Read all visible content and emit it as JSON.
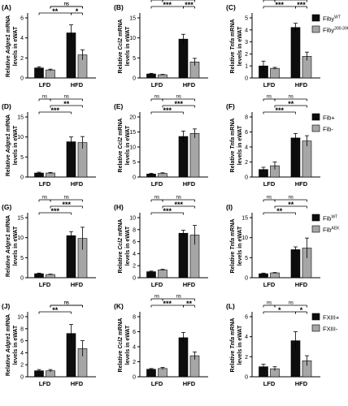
{
  "colors": {
    "bar_dark": "#0d0d0d",
    "bar_light": "#a6a6a6",
    "axis": "#000000"
  },
  "legends": [
    {
      "row": 0,
      "dark_label": "Fiby",
      "dark_sup": "WT",
      "light_label": "Fiby",
      "light_sup": "390-396A"
    },
    {
      "row": 1,
      "dark_label": "Fib+",
      "dark_sup": "",
      "light_label": "Fib-",
      "light_sup": ""
    },
    {
      "row": 2,
      "dark_label": "Fib",
      "dark_sup": "WT",
      "light_label": "Fib",
      "light_sup": "AEK"
    },
    {
      "row": 3,
      "dark_label": "FXIII+",
      "dark_sup": "",
      "light_label": "FXIII-",
      "light_sup": ""
    }
  ],
  "chart_data": [
    {
      "panel": "(A)",
      "type": "bar",
      "ylabel_prefix": "Relative ",
      "ylabel_gene": "Adgre1",
      "ylabel_suffix": " mRNA",
      "ylabel_line2": "levels in eWAT",
      "ylim": [
        0,
        6
      ],
      "yticks": [
        "0",
        "2",
        "4",
        "6"
      ],
      "categories": [
        "LFD",
        "HFD"
      ],
      "series": [
        {
          "values": [
            1.0,
            4.5
          ],
          "errors": [
            0.12,
            0.8
          ]
        },
        {
          "values": [
            0.8,
            2.3
          ],
          "errors": [
            0.08,
            0.5
          ]
        }
      ],
      "sig": [
        {
          "text": "ns",
          "level": 1,
          "from": [
            0,
            1
          ],
          "to": [
            1,
            1
          ]
        },
        {
          "text": "ns",
          "level": 1,
          "from": [
            0,
            1
          ],
          "to": [
            1,
            1
          ]
        },
        {
          "text": "**",
          "level": 0,
          "from": [
            0,
            0
          ],
          "to": [
            1,
            0
          ]
        },
        {
          "text": "*",
          "level": 0,
          "from": [
            1,
            0
          ],
          "to": [
            1,
            1
          ]
        }
      ]
    },
    {
      "panel": "(B)",
      "type": "bar",
      "ylabel_prefix": "Relative ",
      "ylabel_gene": "Ccl2",
      "ylabel_suffix": " mRNA",
      "ylabel_line2": "levels in eWAT",
      "ylim": [
        0,
        15
      ],
      "yticks": [
        "0",
        "5",
        "10",
        "15"
      ],
      "categories": [
        "LFD",
        "HFD"
      ],
      "series": [
        {
          "values": [
            1.0,
            9.7
          ],
          "errors": [
            0.15,
            1.2
          ]
        },
        {
          "values": [
            0.8,
            4.0
          ],
          "errors": [
            0.1,
            0.9
          ]
        }
      ],
      "sig": [
        {
          "text": "ns",
          "level": 2,
          "from": [
            0,
            0
          ],
          "to": [
            0,
            1
          ]
        },
        {
          "text": "ns",
          "level": 2,
          "from": [
            0,
            1
          ],
          "to": [
            1,
            1
          ]
        },
        {
          "text": "***",
          "level": 1,
          "from": [
            0,
            0
          ],
          "to": [
            1,
            0
          ]
        },
        {
          "text": "***",
          "level": 1,
          "from": [
            1,
            0
          ],
          "to": [
            1,
            1
          ]
        }
      ]
    },
    {
      "panel": "(C)",
      "type": "bar",
      "ylabel_prefix": "Relative ",
      "ylabel_gene": "Tnfa",
      "ylabel_suffix": " mRNA",
      "ylabel_line2": "levels in eWAT",
      "ylim": [
        0,
        5
      ],
      "yticks": [
        "0",
        "1",
        "2",
        "3",
        "4",
        "5"
      ],
      "categories": [
        "LFD",
        "HFD"
      ],
      "series": [
        {
          "values": [
            1.0,
            4.2
          ],
          "errors": [
            0.4,
            0.35
          ]
        },
        {
          "values": [
            0.8,
            1.8
          ],
          "errors": [
            0.08,
            0.35
          ]
        }
      ],
      "sig": [
        {
          "text": "ns",
          "level": 2,
          "from": [
            0,
            0
          ],
          "to": [
            0,
            1
          ]
        },
        {
          "text": "ns",
          "level": 2,
          "from": [
            0,
            1
          ],
          "to": [
            1,
            1
          ]
        },
        {
          "text": "***",
          "level": 1,
          "from": [
            0,
            0
          ],
          "to": [
            1,
            0
          ]
        },
        {
          "text": "***",
          "level": 1,
          "from": [
            1,
            0
          ],
          "to": [
            1,
            1
          ]
        }
      ]
    },
    {
      "panel": "(D)",
      "type": "bar",
      "ylabel_prefix": "Relative ",
      "ylabel_gene": "Adgre1",
      "ylabel_suffix": " mRNA",
      "ylabel_line2": "levels in eWAT",
      "ylim": [
        0,
        15
      ],
      "yticks": [
        "0",
        "5",
        "10",
        "15"
      ],
      "categories": [
        "LFD",
        "HFD"
      ],
      "series": [
        {
          "values": [
            1.0,
            8.8
          ],
          "errors": [
            0.2,
            1.2
          ]
        },
        {
          "values": [
            1.0,
            8.6
          ],
          "errors": [
            0.15,
            1.5
          ]
        }
      ],
      "sig": [
        {
          "text": "ns",
          "level": 2,
          "from": [
            0,
            0
          ],
          "to": [
            0,
            1
          ]
        },
        {
          "text": "ns",
          "level": 2,
          "from": [
            0,
            1
          ],
          "to": [
            1,
            1
          ]
        },
        {
          "text": "**",
          "level": 1,
          "from": [
            0,
            1
          ],
          "to": [
            1,
            1
          ]
        },
        {
          "text": "***",
          "level": 0,
          "from": [
            0,
            0
          ],
          "to": [
            1,
            0
          ]
        }
      ]
    },
    {
      "panel": "(E)",
      "type": "bar",
      "ylabel_prefix": "Relative ",
      "ylabel_gene": "Ccl2",
      "ylabel_suffix": " mRNA",
      "ylabel_line2": "levels in eWAT",
      "ylim": [
        0,
        20
      ],
      "yticks": [
        "0",
        "5",
        "10",
        "15",
        "20"
      ],
      "categories": [
        "LFD",
        "HFD"
      ],
      "series": [
        {
          "values": [
            1.0,
            13.5
          ],
          "errors": [
            0.25,
            1.8
          ]
        },
        {
          "values": [
            1.2,
            14.5
          ],
          "errors": [
            0.2,
            1.5
          ]
        }
      ],
      "sig": [
        {
          "text": "ns",
          "level": 2,
          "from": [
            0,
            0
          ],
          "to": [
            0,
            1
          ]
        },
        {
          "text": "ns",
          "level": 2,
          "from": [
            0,
            1
          ],
          "to": [
            1,
            1
          ]
        },
        {
          "text": "***",
          "level": 1,
          "from": [
            0,
            1
          ],
          "to": [
            1,
            1
          ]
        },
        {
          "text": "***",
          "level": 0,
          "from": [
            0,
            0
          ],
          "to": [
            1,
            0
          ]
        }
      ]
    },
    {
      "panel": "(F)",
      "type": "bar",
      "ylabel_prefix": "Relative ",
      "ylabel_gene": "Tnfa",
      "ylabel_suffix": " mRNA",
      "ylabel_line2": "levels in eWAT",
      "ylim": [
        0,
        8
      ],
      "yticks": [
        "0",
        "2",
        "4",
        "6",
        "8"
      ],
      "categories": [
        "LFD",
        "HFD"
      ],
      "series": [
        {
          "values": [
            1.0,
            5.2
          ],
          "errors": [
            0.3,
            0.6
          ]
        },
        {
          "values": [
            1.5,
            4.8
          ],
          "errors": [
            0.5,
            0.7
          ]
        }
      ],
      "sig": [
        {
          "text": "ns",
          "level": 2,
          "from": [
            0,
            0
          ],
          "to": [
            0,
            1
          ]
        },
        {
          "text": "ns",
          "level": 2,
          "from": [
            0,
            1
          ],
          "to": [
            1,
            1
          ]
        },
        {
          "text": "**",
          "level": 1,
          "from": [
            0,
            1
          ],
          "to": [
            1,
            1
          ]
        },
        {
          "text": "***",
          "level": 0,
          "from": [
            0,
            0
          ],
          "to": [
            1,
            0
          ]
        }
      ]
    },
    {
      "panel": "(G)",
      "type": "bar",
      "ylabel_prefix": "Relative ",
      "ylabel_gene": "Adgre1",
      "ylabel_suffix": " mRNA",
      "ylabel_line2": "levels in eWAT",
      "ylim": [
        0,
        15
      ],
      "yticks": [
        "0",
        "5",
        "10",
        "15"
      ],
      "categories": [
        "LFD",
        "HFD"
      ],
      "series": [
        {
          "values": [
            1.0,
            10.5
          ],
          "errors": [
            0.15,
            1.0
          ]
        },
        {
          "values": [
            0.8,
            9.8
          ],
          "errors": [
            0.1,
            2.8
          ]
        }
      ],
      "sig": [
        {
          "text": "ns",
          "level": 2,
          "from": [
            0,
            0
          ],
          "to": [
            0,
            1
          ]
        },
        {
          "text": "ns",
          "level": 2,
          "from": [
            0,
            1
          ],
          "to": [
            1,
            1
          ]
        },
        {
          "text": "***",
          "level": 1,
          "from": [
            0,
            1
          ],
          "to": [
            1,
            1
          ]
        },
        {
          "text": "***",
          "level": 0,
          "from": [
            0,
            0
          ],
          "to": [
            1,
            0
          ]
        }
      ]
    },
    {
      "panel": "(H)",
      "type": "bar",
      "ylabel_prefix": "Relative ",
      "ylabel_gene": "Ccl2",
      "ylabel_suffix": " mRNA",
      "ylabel_line2": "levels in eWAT",
      "ylim": [
        0,
        10
      ],
      "yticks": [
        "0",
        "2",
        "4",
        "6",
        "8",
        "10"
      ],
      "categories": [
        "LFD",
        "HFD"
      ],
      "series": [
        {
          "values": [
            1.0,
            7.4
          ],
          "errors": [
            0.1,
            0.5
          ]
        },
        {
          "values": [
            1.3,
            7.1
          ],
          "errors": [
            0.1,
            1.6
          ]
        }
      ],
      "sig": [
        {
          "text": "ns",
          "level": 2,
          "from": [
            0,
            0
          ],
          "to": [
            0,
            1
          ]
        },
        {
          "text": "ns",
          "level": 2,
          "from": [
            0,
            1
          ],
          "to": [
            1,
            1
          ]
        },
        {
          "text": "***",
          "level": 1,
          "from": [
            0,
            1
          ],
          "to": [
            1,
            1
          ]
        },
        {
          "text": "***",
          "level": 0,
          "from": [
            0,
            0
          ],
          "to": [
            1,
            0
          ]
        }
      ]
    },
    {
      "panel": "(I)",
      "type": "bar",
      "ylabel_prefix": "Relative ",
      "ylabel_gene": "Tnfa",
      "ylabel_suffix": " mRNA",
      "ylabel_line2": "levels in eWAT",
      "ylim": [
        0,
        15
      ],
      "yticks": [
        "0",
        "5",
        "10",
        "15"
      ],
      "categories": [
        "LFD",
        "HFD"
      ],
      "series": [
        {
          "values": [
            1.0,
            7.0
          ],
          "errors": [
            0.15,
            0.7
          ]
        },
        {
          "values": [
            1.2,
            7.4
          ],
          "errors": [
            0.1,
            2.5
          ]
        }
      ],
      "sig": [
        {
          "text": "ns",
          "level": 2,
          "from": [
            0,
            0
          ],
          "to": [
            0,
            1
          ]
        },
        {
          "text": "ns",
          "level": 2,
          "from": [
            0,
            1
          ],
          "to": [
            1,
            1
          ]
        },
        {
          "text": "**",
          "level": 1,
          "from": [
            0,
            1
          ],
          "to": [
            1,
            1
          ]
        },
        {
          "text": "**",
          "level": 0,
          "from": [
            0,
            0
          ],
          "to": [
            1,
            0
          ]
        }
      ]
    },
    {
      "panel": "(J)",
      "type": "bar",
      "ylabel_prefix": "Relative ",
      "ylabel_gene": "Adgre1",
      "ylabel_suffix": " mRNA",
      "ylabel_line2": "levels in eWAT",
      "ylim": [
        0,
        10
      ],
      "yticks": [
        "0",
        "2",
        "4",
        "6",
        "8",
        "10"
      ],
      "categories": [
        "LFD",
        "HFD"
      ],
      "series": [
        {
          "values": [
            1.0,
            7.2
          ],
          "errors": [
            0.2,
            1.5
          ]
        },
        {
          "values": [
            1.0,
            4.7
          ],
          "errors": [
            0.2,
            1.3
          ]
        }
      ],
      "sig": [
        {
          "text": "ns",
          "level": 1,
          "from": [
            0,
            1
          ],
          "to": [
            1,
            1
          ]
        },
        {
          "text": "ns",
          "level": 1,
          "from": [
            0,
            1
          ],
          "to": [
            1,
            1
          ]
        },
        {
          "text": "**",
          "level": 0,
          "from": [
            0,
            0
          ],
          "to": [
            1,
            0
          ]
        }
      ]
    },
    {
      "panel": "(K)",
      "type": "bar",
      "ylabel_prefix": "Relative ",
      "ylabel_gene": "Ccl2",
      "ylabel_suffix": " mRNA",
      "ylabel_line2": "levels in eWAT",
      "ylim": [
        0,
        8
      ],
      "yticks": [
        "0",
        "2",
        "4",
        "6",
        "8"
      ],
      "categories": [
        "LFD",
        "HFD"
      ],
      "series": [
        {
          "values": [
            1.0,
            5.2
          ],
          "errors": [
            0.1,
            0.7
          ]
        },
        {
          "values": [
            1.1,
            2.8
          ],
          "errors": [
            0.15,
            0.5
          ]
        }
      ],
      "sig": [
        {
          "text": "ns",
          "level": 2,
          "from": [
            0,
            0
          ],
          "to": [
            0,
            1
          ]
        },
        {
          "text": "ns",
          "level": 2,
          "from": [
            0,
            1
          ],
          "to": [
            1,
            1
          ]
        },
        {
          "text": "***",
          "level": 1,
          "from": [
            0,
            0
          ],
          "to": [
            1,
            0
          ]
        },
        {
          "text": "**",
          "level": 1,
          "from": [
            1,
            0
          ],
          "to": [
            1,
            1
          ]
        }
      ]
    },
    {
      "panel": "(L)",
      "type": "bar",
      "ylabel_prefix": "Relative ",
      "ylabel_gene": "Tnfa",
      "ylabel_suffix": " mRNA",
      "ylabel_line2": "levels in eWAT",
      "ylim": [
        0,
        6
      ],
      "yticks": [
        "0",
        "2",
        "4",
        "6"
      ],
      "categories": [
        "LFD",
        "HFD"
      ],
      "series": [
        {
          "values": [
            1.0,
            3.6
          ],
          "errors": [
            0.25,
            0.9
          ]
        },
        {
          "values": [
            0.8,
            1.6
          ],
          "errors": [
            0.2,
            0.5
          ]
        }
      ],
      "sig": [
        {
          "text": "ns",
          "level": 1,
          "from": [
            0,
            0
          ],
          "to": [
            0,
            1
          ]
        },
        {
          "text": "ns",
          "level": 1,
          "from": [
            0,
            1
          ],
          "to": [
            1,
            1
          ]
        },
        {
          "text": "*",
          "level": 0,
          "from": [
            0,
            0
          ],
          "to": [
            1,
            0
          ]
        },
        {
          "text": "*",
          "level": 0,
          "from": [
            1,
            0
          ],
          "to": [
            1,
            1
          ]
        }
      ]
    }
  ]
}
